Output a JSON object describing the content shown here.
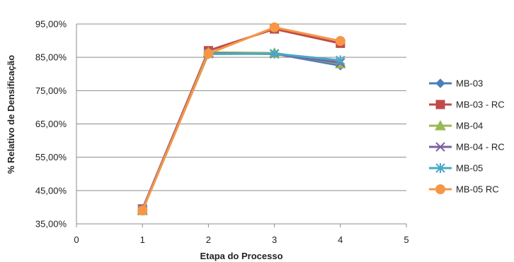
{
  "chart_data": {
    "type": "line",
    "xlabel": "Etapa do Processo",
    "ylabel": "% Relativo de Densificação",
    "xlim": [
      0,
      5
    ],
    "ylim": [
      35,
      95
    ],
    "x_ticks": [
      0,
      1,
      2,
      3,
      4,
      5
    ],
    "y_ticks": [
      35,
      45,
      55,
      65,
      75,
      85,
      95
    ],
    "y_tick_labels": [
      "35,00%",
      "45,00%",
      "55,00%",
      "65,00%",
      "75,00%",
      "85,00%",
      "95,00%"
    ],
    "grid": "horizontal",
    "legend_position": "right",
    "series": [
      {
        "name": "MB-03",
        "color": "#4a7ebb",
        "marker": "diamond",
        "x": [
          1,
          2,
          3,
          4
        ],
        "values": [
          39.3,
          86.3,
          86.1,
          82.5
        ]
      },
      {
        "name": "MB-03 - RC",
        "color": "#be4b48",
        "marker": "square",
        "x": [
          1,
          2,
          3,
          4
        ],
        "values": [
          39.5,
          87.0,
          93.5,
          89.2
        ]
      },
      {
        "name": "MB-04",
        "color": "#98b954",
        "marker": "triangle",
        "x": [
          1,
          2,
          3,
          4
        ],
        "values": [
          39.0,
          86.5,
          86.3,
          83.1
        ]
      },
      {
        "name": "MB-04 - RC",
        "color": "#7d60a0",
        "marker": "x",
        "x": [
          1,
          2,
          3,
          4
        ],
        "values": [
          39.3,
          86.2,
          86.0,
          83.4
        ]
      },
      {
        "name": "MB-05",
        "color": "#46aac5",
        "marker": "star",
        "x": [
          1,
          2,
          3,
          4
        ],
        "values": [
          39.2,
          86.0,
          86.1,
          84.1
        ]
      },
      {
        "name": "MB-05 RC",
        "color": "#f79646",
        "marker": "circle",
        "x": [
          1,
          2,
          3,
          4
        ],
        "values": [
          39.0,
          86.1,
          94.0,
          89.9
        ]
      }
    ]
  }
}
